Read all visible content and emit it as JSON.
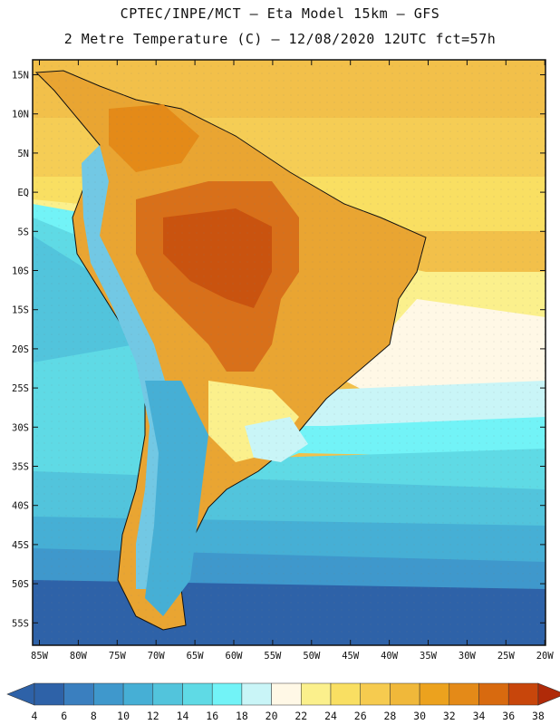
{
  "header": {
    "title_line1": "CPTEC/INPE/MCT –  Eta Model 15km – GFS",
    "title_line2": "2 Metre Temperature (C) – 12/08/2020 12UTC fct=57h"
  },
  "map": {
    "lat_labels": [
      "15N",
      "10N",
      "5N",
      "EQ",
      "5S",
      "10S",
      "15S",
      "20S",
      "25S",
      "30S",
      "35S",
      "40S",
      "45S",
      "50S",
      "55S"
    ],
    "lon_labels": [
      "85W",
      "80W",
      "75W",
      "70W",
      "65W",
      "60W",
      "55W",
      "50W",
      "45W",
      "40W",
      "35W",
      "30W",
      "25W",
      "20W"
    ]
  },
  "colorbar": {
    "labels": [
      "4",
      "6",
      "8",
      "10",
      "12",
      "14",
      "16",
      "18",
      "20",
      "22",
      "24",
      "26",
      "28",
      "30",
      "32",
      "34",
      "36",
      "38"
    ],
    "colors": [
      "#2e62a8",
      "#3a7fbf",
      "#3f98cc",
      "#46afd5",
      "#52c4dc",
      "#5fdae5",
      "#72f3f7",
      "#c9f5f7",
      "#fff8e6",
      "#fbf08c",
      "#f9df62",
      "#f6cb4f",
      "#f0b83a",
      "#eca21e",
      "#e48a18",
      "#d86a0f",
      "#c8460b",
      "#b8330a"
    ],
    "low_color": "#2e62a8",
    "high_color": "#b02a08"
  }
}
